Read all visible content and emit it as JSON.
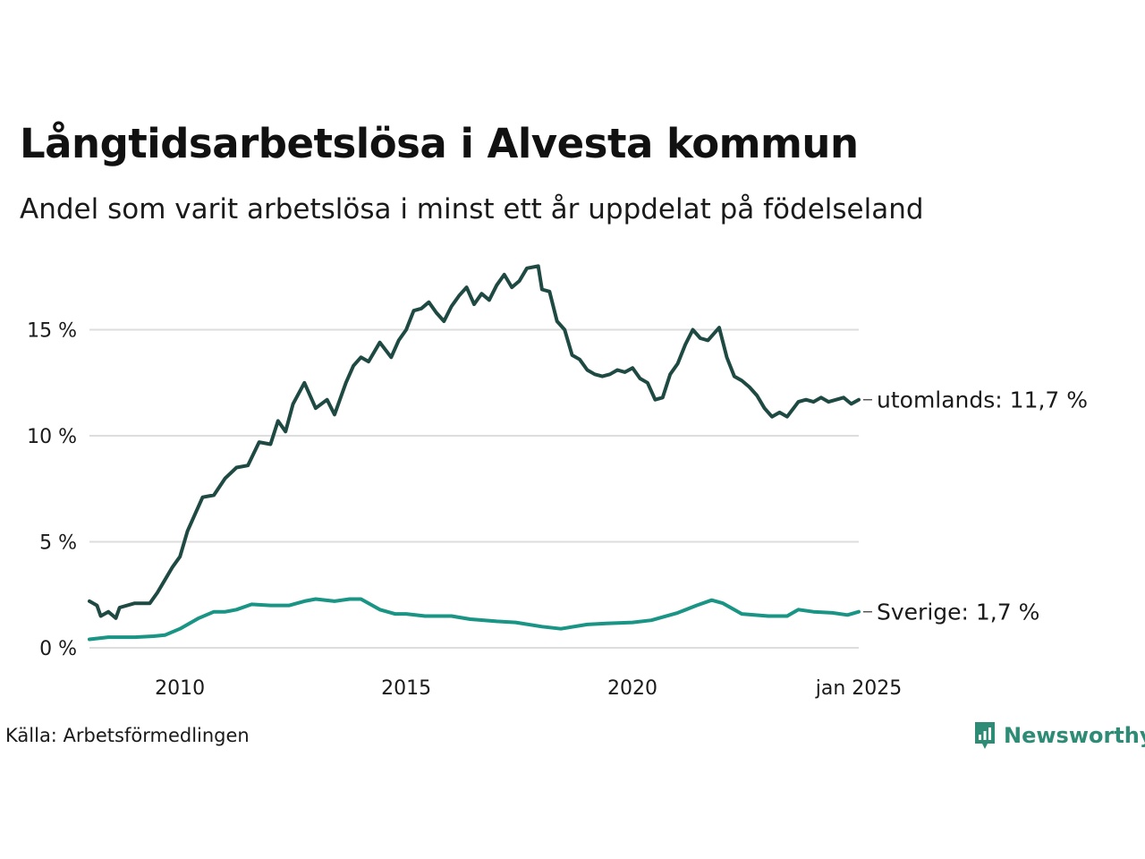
{
  "header": {
    "title": "Långtidsarbetslösa i Alvesta kommun",
    "subtitle": "Andel som varit arbetslösa i minst ett år uppdelat på födelseland"
  },
  "footer": {
    "source": "Källa: Arbetsförmedlingen",
    "brand": "Newsworthy"
  },
  "colors": {
    "utomlands": "#1f4a43",
    "sverige": "#1a9484",
    "grid": "#dddddd",
    "brand": "#2e8b76"
  },
  "chart_data": {
    "type": "line",
    "title": "Långtidsarbetslösa i Alvesta kommun",
    "subtitle": "Andel som varit arbetslösa i minst ett år uppdelat på födelseland",
    "xlabel": "",
    "ylabel": "",
    "ylim": [
      0,
      18
    ],
    "xlim": [
      "2008-01",
      "2025-01"
    ],
    "y_ticks": [
      0,
      5,
      10,
      15
    ],
    "y_tick_labels": [
      "0 %",
      "5 %",
      "10 %",
      "15 %"
    ],
    "x_ticks": [
      "2010-01",
      "2015-01",
      "2020-01",
      "2025-01"
    ],
    "x_tick_labels": [
      "2010",
      "2015",
      "2020",
      "jan 2025"
    ],
    "grid": "horizontal",
    "legend": "direct labels at line ends (right)",
    "series": [
      {
        "name": "utomlands",
        "end_label": "utomlands: 11,7 %",
        "color": "#1f4a43",
        "points": [
          [
            "2008-01",
            2.2
          ],
          [
            "2008-03",
            2.0
          ],
          [
            "2008-04",
            1.5
          ],
          [
            "2008-06",
            1.7
          ],
          [
            "2008-08",
            1.4
          ],
          [
            "2008-09",
            1.9
          ],
          [
            "2009-01",
            2.1
          ],
          [
            "2009-05",
            2.1
          ],
          [
            "2009-07",
            2.6
          ],
          [
            "2009-09",
            3.2
          ],
          [
            "2009-11",
            3.8
          ],
          [
            "2010-01",
            4.3
          ],
          [
            "2010-03",
            5.5
          ],
          [
            "2010-05",
            6.3
          ],
          [
            "2010-07",
            7.1
          ],
          [
            "2010-10",
            7.2
          ],
          [
            "2011-01",
            8.0
          ],
          [
            "2011-04",
            8.5
          ],
          [
            "2011-07",
            8.6
          ],
          [
            "2011-10",
            9.7
          ],
          [
            "2012-01",
            9.6
          ],
          [
            "2012-03",
            10.7
          ],
          [
            "2012-05",
            10.2
          ],
          [
            "2012-07",
            11.5
          ],
          [
            "2012-10",
            12.5
          ],
          [
            "2013-01",
            11.3
          ],
          [
            "2013-04",
            11.7
          ],
          [
            "2013-06",
            11.0
          ],
          [
            "2013-09",
            12.5
          ],
          [
            "2013-11",
            13.3
          ],
          [
            "2014-01",
            13.7
          ],
          [
            "2014-03",
            13.5
          ],
          [
            "2014-06",
            14.4
          ],
          [
            "2014-09",
            13.7
          ],
          [
            "2014-11",
            14.5
          ],
          [
            "2015-01",
            15.0
          ],
          [
            "2015-03",
            15.9
          ],
          [
            "2015-05",
            16.0
          ],
          [
            "2015-07",
            16.3
          ],
          [
            "2015-09",
            15.8
          ],
          [
            "2015-11",
            15.4
          ],
          [
            "2016-01",
            16.1
          ],
          [
            "2016-03",
            16.6
          ],
          [
            "2016-05",
            17.0
          ],
          [
            "2016-07",
            16.2
          ],
          [
            "2016-09",
            16.7
          ],
          [
            "2016-11",
            16.4
          ],
          [
            "2017-01",
            17.1
          ],
          [
            "2017-03",
            17.6
          ],
          [
            "2017-05",
            17.0
          ],
          [
            "2017-07",
            17.3
          ],
          [
            "2017-09",
            17.9
          ],
          [
            "2017-12",
            18.0
          ],
          [
            "2018-01",
            16.9
          ],
          [
            "2018-03",
            16.8
          ],
          [
            "2018-05",
            15.4
          ],
          [
            "2018-07",
            15.0
          ],
          [
            "2018-09",
            13.8
          ],
          [
            "2018-11",
            13.6
          ],
          [
            "2019-01",
            13.1
          ],
          [
            "2019-03",
            12.9
          ],
          [
            "2019-05",
            12.8
          ],
          [
            "2019-07",
            12.9
          ],
          [
            "2019-09",
            13.1
          ],
          [
            "2019-11",
            13.0
          ],
          [
            "2020-01",
            13.2
          ],
          [
            "2020-03",
            12.7
          ],
          [
            "2020-05",
            12.5
          ],
          [
            "2020-07",
            11.7
          ],
          [
            "2020-09",
            11.8
          ],
          [
            "2020-11",
            12.9
          ],
          [
            "2021-01",
            13.4
          ],
          [
            "2021-03",
            14.3
          ],
          [
            "2021-05",
            15.0
          ],
          [
            "2021-07",
            14.6
          ],
          [
            "2021-09",
            14.5
          ],
          [
            "2021-12",
            15.1
          ],
          [
            "2022-02",
            13.7
          ],
          [
            "2022-04",
            12.8
          ],
          [
            "2022-06",
            12.6
          ],
          [
            "2022-08",
            12.3
          ],
          [
            "2022-10",
            11.9
          ],
          [
            "2022-12",
            11.3
          ],
          [
            "2023-02",
            10.9
          ],
          [
            "2023-04",
            11.1
          ],
          [
            "2023-06",
            10.9
          ],
          [
            "2023-09",
            11.6
          ],
          [
            "2023-11",
            11.7
          ],
          [
            "2024-01",
            11.6
          ],
          [
            "2024-03",
            11.8
          ],
          [
            "2024-05",
            11.6
          ],
          [
            "2024-07",
            11.7
          ],
          [
            "2024-09",
            11.8
          ],
          [
            "2024-11",
            11.5
          ],
          [
            "2025-01",
            11.7
          ]
        ]
      },
      {
        "name": "Sverige",
        "end_label": "Sverige:  1,7 %",
        "color": "#1a9484",
        "points": [
          [
            "2008-01",
            0.4
          ],
          [
            "2008-06",
            0.5
          ],
          [
            "2009-01",
            0.5
          ],
          [
            "2009-06",
            0.55
          ],
          [
            "2009-09",
            0.6
          ],
          [
            "2010-01",
            0.9
          ],
          [
            "2010-06",
            1.4
          ],
          [
            "2010-10",
            1.7
          ],
          [
            "2011-01",
            1.7
          ],
          [
            "2011-04",
            1.8
          ],
          [
            "2011-08",
            2.05
          ],
          [
            "2012-01",
            2.0
          ],
          [
            "2012-06",
            2.0
          ],
          [
            "2012-10",
            2.2
          ],
          [
            "2013-01",
            2.3
          ],
          [
            "2013-06",
            2.2
          ],
          [
            "2013-10",
            2.3
          ],
          [
            "2014-01",
            2.3
          ],
          [
            "2014-06",
            1.8
          ],
          [
            "2014-10",
            1.6
          ],
          [
            "2015-01",
            1.6
          ],
          [
            "2015-06",
            1.5
          ],
          [
            "2016-01",
            1.5
          ],
          [
            "2016-06",
            1.35
          ],
          [
            "2017-01",
            1.25
          ],
          [
            "2017-06",
            1.2
          ],
          [
            "2018-01",
            1.0
          ],
          [
            "2018-06",
            0.9
          ],
          [
            "2019-01",
            1.1
          ],
          [
            "2019-06",
            1.15
          ],
          [
            "2020-01",
            1.2
          ],
          [
            "2020-06",
            1.3
          ],
          [
            "2021-01",
            1.65
          ],
          [
            "2021-06",
            2.0
          ],
          [
            "2021-10",
            2.25
          ],
          [
            "2022-01",
            2.1
          ],
          [
            "2022-06",
            1.6
          ],
          [
            "2023-01",
            1.5
          ],
          [
            "2023-06",
            1.5
          ],
          [
            "2023-09",
            1.8
          ],
          [
            "2024-01",
            1.7
          ],
          [
            "2024-06",
            1.65
          ],
          [
            "2024-10",
            1.55
          ],
          [
            "2025-01",
            1.7
          ]
        ]
      }
    ]
  }
}
